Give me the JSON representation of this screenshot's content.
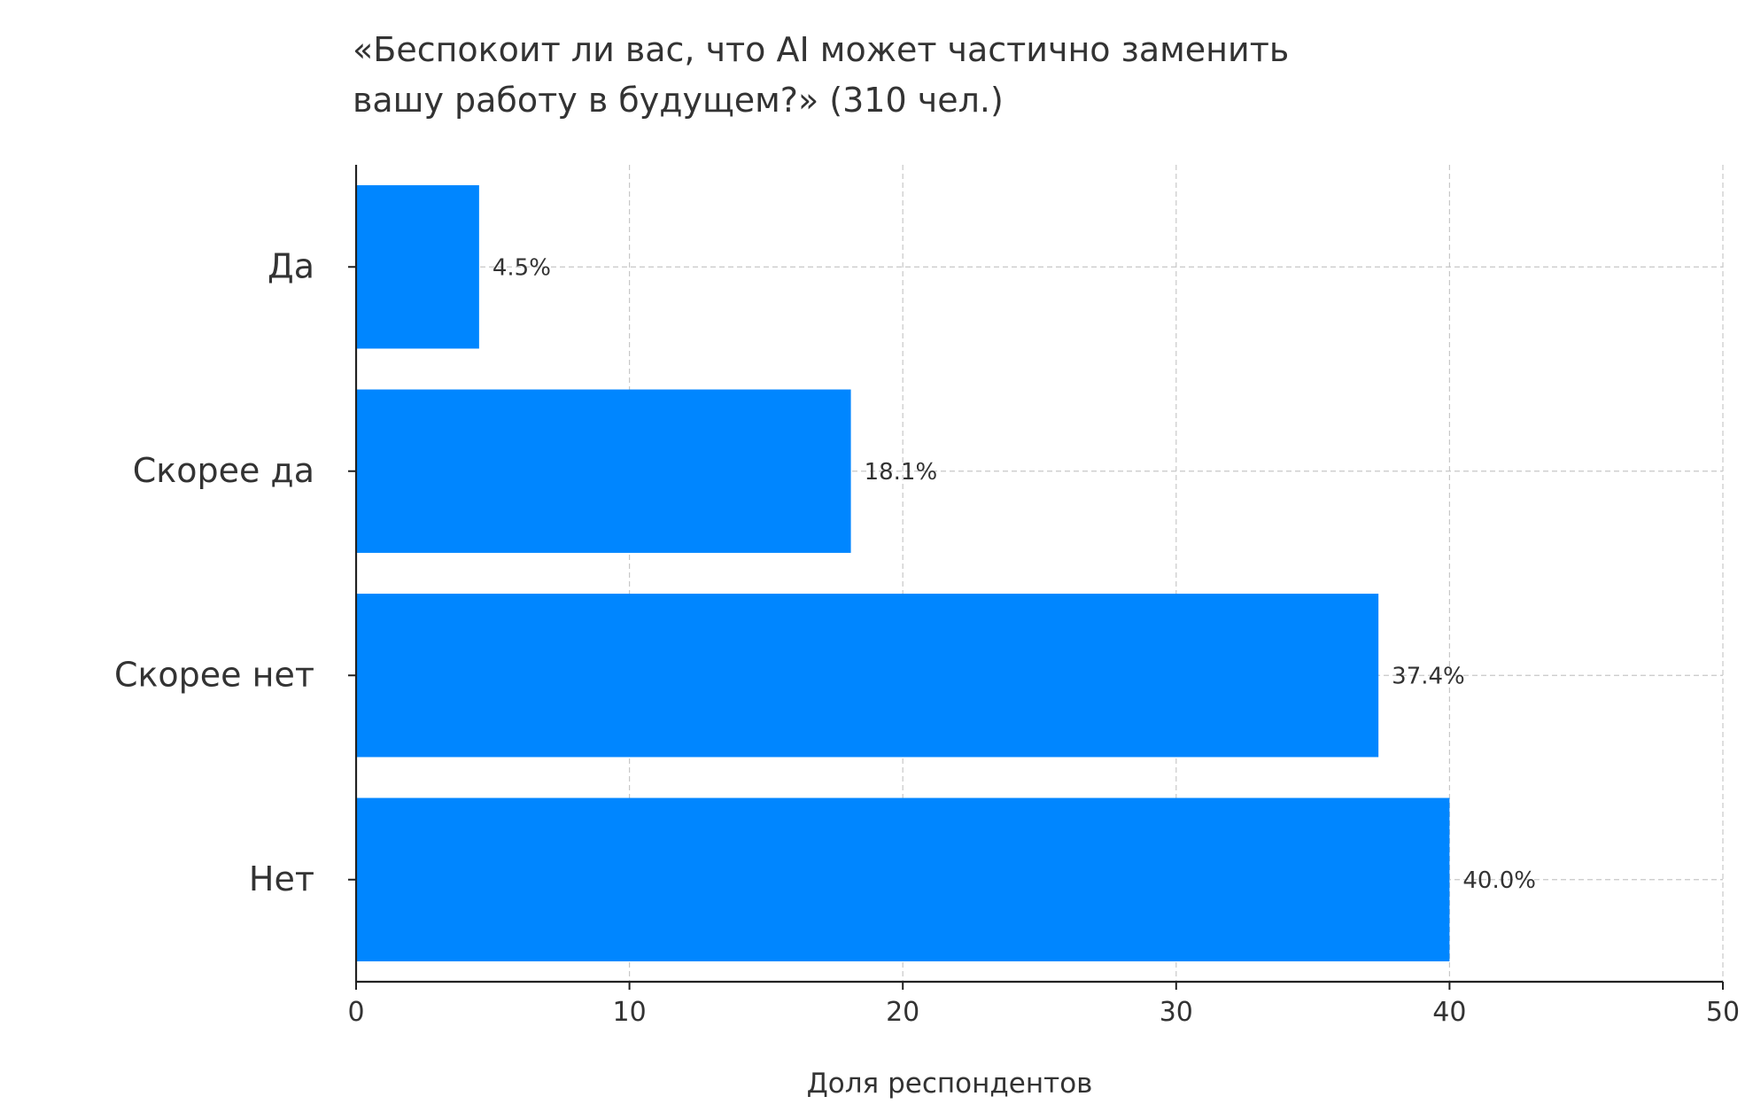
{
  "chart_data": {
    "type": "bar",
    "orientation": "horizontal",
    "title_lines": [
      "«Беспокоит ли вас, что AI может частично заменить",
      "вашу работу в будущем?» (310 чел.)"
    ],
    "categories": [
      "Да",
      "Скорее да",
      "Скорее нет",
      "Нет"
    ],
    "values": [
      4.5,
      18.1,
      37.4,
      40.0
    ],
    "value_labels": [
      "4.5%",
      "18.1%",
      "37.4%",
      "40.0%"
    ],
    "xlabel": "Доля респондентов",
    "ylabel": "",
    "xlim": [
      0,
      50
    ],
    "xticks": [
      0,
      10,
      20,
      30,
      40,
      50
    ],
    "grid": true,
    "bar_color": "#0086ff",
    "grid_color": "#c8c8c8",
    "axis_color": "#222222"
  }
}
